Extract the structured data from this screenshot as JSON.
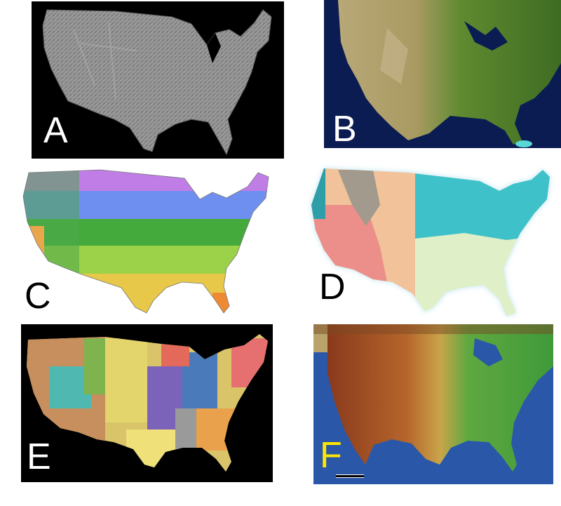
{
  "panels": [
    {
      "id": "A",
      "label": "A",
      "description_key": "shaded-relief-map",
      "colors": {
        "land": "#8a8a8a",
        "background": "#000000"
      }
    },
    {
      "id": "B",
      "label": "B",
      "description_key": "satellite-imagery-map",
      "colors": {
        "land": "#5b8a2e",
        "ocean": "#0b1c52"
      }
    },
    {
      "id": "C",
      "label": "C",
      "description_key": "hardiness-zone-map",
      "colors": {
        "zone1": "#c07de6",
        "zone2": "#6f8ff0",
        "zone3": "#44aa3c",
        "zone4": "#9cd14a",
        "zone5": "#e8c848",
        "zone6": "#ef8a34"
      }
    },
    {
      "id": "D",
      "label": "D",
      "description_key": "political-climate-regions-map",
      "colors": {
        "northeast": "#3fc1c9",
        "southeast": "#dff0c8",
        "west": "#f2c29a",
        "southwest": "#ec8f8a",
        "mountains": "#a29a8c"
      }
    },
    {
      "id": "E",
      "label": "E",
      "description_key": "geologic-map",
      "colors": {
        "background": "#000000"
      }
    },
    {
      "id": "F",
      "label": "F",
      "description_key": "physical-elevation-map",
      "colors": {
        "lowland": "#3f9a3a",
        "highland": "#8a3a1c",
        "ocean": "#2a57a8"
      }
    }
  ]
}
